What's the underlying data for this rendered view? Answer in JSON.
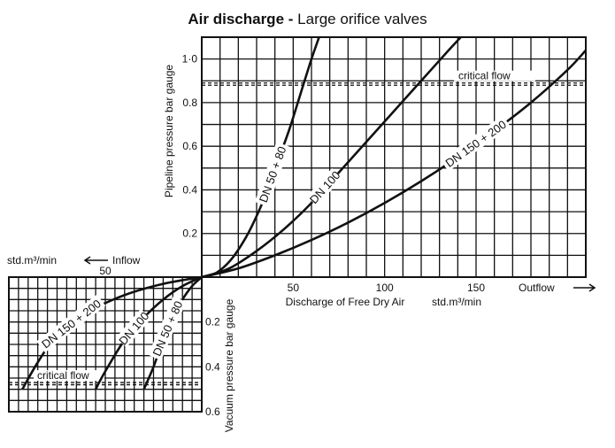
{
  "chart_data": {
    "type": "line",
    "title_bold": "Air discharge -",
    "title_rest": "Large orifice valves",
    "outflow": {
      "ylabel": "Pipeline pressure bar gauge",
      "xlabel": "Discharge of Free Dry Air",
      "x_unit": "std.m³/min",
      "direction_label": "Outflow",
      "x_ticks": [
        {
          "v": 50,
          "t": "50"
        },
        {
          "v": 100,
          "t": "100"
        },
        {
          "v": 150,
          "t": "150"
        }
      ],
      "y_ticks": [
        {
          "v": 0.2,
          "t": "0.2"
        },
        {
          "v": 0.4,
          "t": "0.4"
        },
        {
          "v": 0.6,
          "t": "0.6"
        },
        {
          "v": 0.8,
          "t": "0.8"
        },
        {
          "v": 1.0,
          "t": "1·0"
        }
      ],
      "xlim": [
        0,
        210
      ],
      "ylim": [
        0,
        1.1
      ],
      "critical_flow": {
        "label": "critical flow",
        "value": 0.89
      },
      "series": [
        {
          "name": "DN 50 + 80",
          "x": [
            0,
            8,
            16,
            24,
            30,
            36,
            42,
            48,
            54,
            60,
            65
          ],
          "y": [
            0,
            0.02,
            0.08,
            0.18,
            0.28,
            0.4,
            0.54,
            0.68,
            0.84,
            1.0,
            1.12
          ]
        },
        {
          "name": "DN 100",
          "x": [
            0,
            15,
            30,
            45,
            60,
            75,
            90,
            105,
            120,
            135,
            145
          ],
          "y": [
            0,
            0.04,
            0.12,
            0.22,
            0.34,
            0.48,
            0.62,
            0.76,
            0.9,
            1.04,
            1.13
          ]
        },
        {
          "name": "DN 150 + 200",
          "x": [
            0,
            20,
            40,
            60,
            80,
            100,
            120,
            140,
            160,
            180,
            200,
            210
          ],
          "y": [
            0,
            0.04,
            0.1,
            0.17,
            0.25,
            0.34,
            0.44,
            0.55,
            0.67,
            0.8,
            0.95,
            1.04
          ]
        }
      ]
    },
    "inflow": {
      "ylabel": "Vacuum pressure bar gauge",
      "x_unit": "std.m³/min",
      "direction_label": "Inflow",
      "x_ticks": [
        {
          "v": 50,
          "t": "50"
        }
      ],
      "y_ticks": [
        {
          "v": 0.2,
          "t": "0.2"
        },
        {
          "v": 0.4,
          "t": "0.4"
        },
        {
          "v": 0.6,
          "t": "0.6"
        }
      ],
      "xlim": [
        0,
        100
      ],
      "ylim": [
        0,
        0.6
      ],
      "critical_flow": {
        "label": "critical flow",
        "value": 0.47
      },
      "series": [
        {
          "name": "DN 50 + 80",
          "x": [
            0,
            5,
            10,
            15,
            20,
            25,
            30
          ],
          "y": [
            0,
            0.04,
            0.1,
            0.18,
            0.28,
            0.4,
            0.5
          ]
        },
        {
          "name": "DN 100",
          "x": [
            0,
            10,
            20,
            30,
            40,
            50,
            55
          ],
          "y": [
            0,
            0.04,
            0.1,
            0.18,
            0.28,
            0.42,
            0.5
          ]
        },
        {
          "name": "DN 150 + 200",
          "x": [
            0,
            20,
            40,
            60,
            75,
            85,
            93
          ],
          "y": [
            0,
            0.03,
            0.08,
            0.16,
            0.26,
            0.38,
            0.5
          ]
        }
      ]
    }
  }
}
